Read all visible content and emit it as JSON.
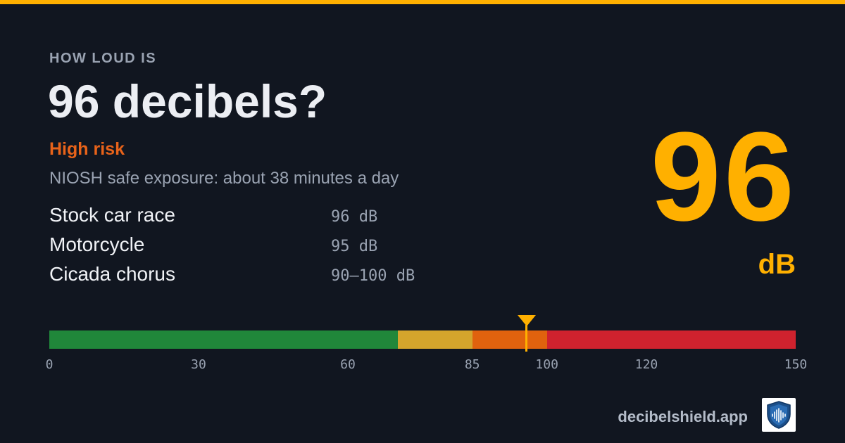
{
  "header": {
    "eyebrow": "HOW LOUD IS",
    "title": "96 decibels?"
  },
  "risk": {
    "label": "High risk",
    "color": "#e8631a"
  },
  "exposure": "NIOSH safe exposure: about 38 minutes a day",
  "examples": [
    {
      "name": "Stock car race",
      "level": "96 dB"
    },
    {
      "name": "Motorcycle",
      "level": "95 dB"
    },
    {
      "name": "Cicada chorus",
      "level": "90–100 dB"
    }
  ],
  "reading": {
    "value": "96",
    "unit": "dB",
    "color": "#ffb000"
  },
  "scale": {
    "min": 0,
    "max": 150,
    "current": 96,
    "segments": [
      {
        "from": 0,
        "to": 70,
        "color": "#20873a"
      },
      {
        "from": 70,
        "to": 85,
        "color": "#d4a52c"
      },
      {
        "from": 85,
        "to": 100,
        "color": "#e0620e"
      },
      {
        "from": 100,
        "to": 150,
        "color": "#cf222e"
      }
    ],
    "tick_labels": [
      "0",
      "30",
      "60",
      "85",
      "100",
      "120",
      "150"
    ]
  },
  "footer": {
    "site": "decibelshield.app",
    "logo_icon": "shield-soundwave-icon"
  }
}
